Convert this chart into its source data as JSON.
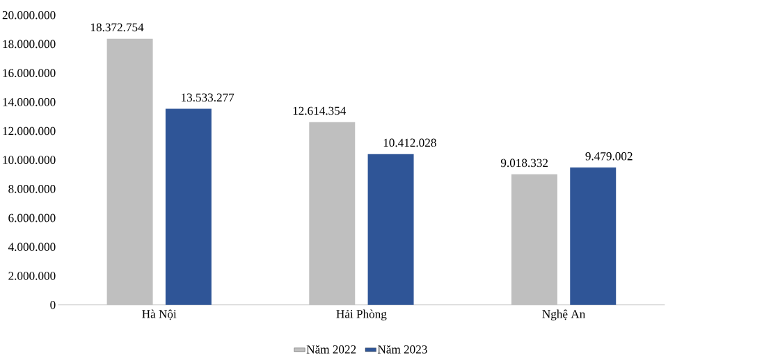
{
  "chart_data": {
    "type": "bar",
    "categories": [
      "Hà Nội",
      "Hải Phòng",
      "Nghệ An"
    ],
    "series": [
      {
        "name": "Năm 2022",
        "color": "#bfbfbf",
        "values": [
          18372754,
          12614354,
          9018332
        ],
        "value_labels": [
          "18.372.754",
          "12.614.354",
          "9.018.332"
        ]
      },
      {
        "name": "Năm 2023",
        "color": "#2f5597",
        "values": [
          13533277,
          10412028,
          9479002
        ],
        "value_labels": [
          "13.533.277",
          "10.412.028",
          "9.479.002"
        ]
      }
    ],
    "ylim": [
      0,
      20000000
    ],
    "yticks": [
      0,
      {
        "value": 2000000,
        "label": "2.000.000"
      },
      {
        "value": 4000000,
        "label": "4.000.000"
      },
      {
        "value": 6000000,
        "label": "6.000.000"
      },
      {
        "value": 8000000,
        "label": "8.000.000"
      },
      {
        "value": 10000000,
        "label": "10.000.000"
      },
      {
        "value": 12000000,
        "label": "12.000.000"
      },
      {
        "value": 14000000,
        "label": "14.000.000"
      },
      {
        "value": 16000000,
        "label": "16.000.000"
      },
      {
        "value": 18000000,
        "label": "18.000.000"
      },
      {
        "value": 20000000,
        "label": "20.000.000"
      }
    ],
    "legend": "bottom"
  }
}
